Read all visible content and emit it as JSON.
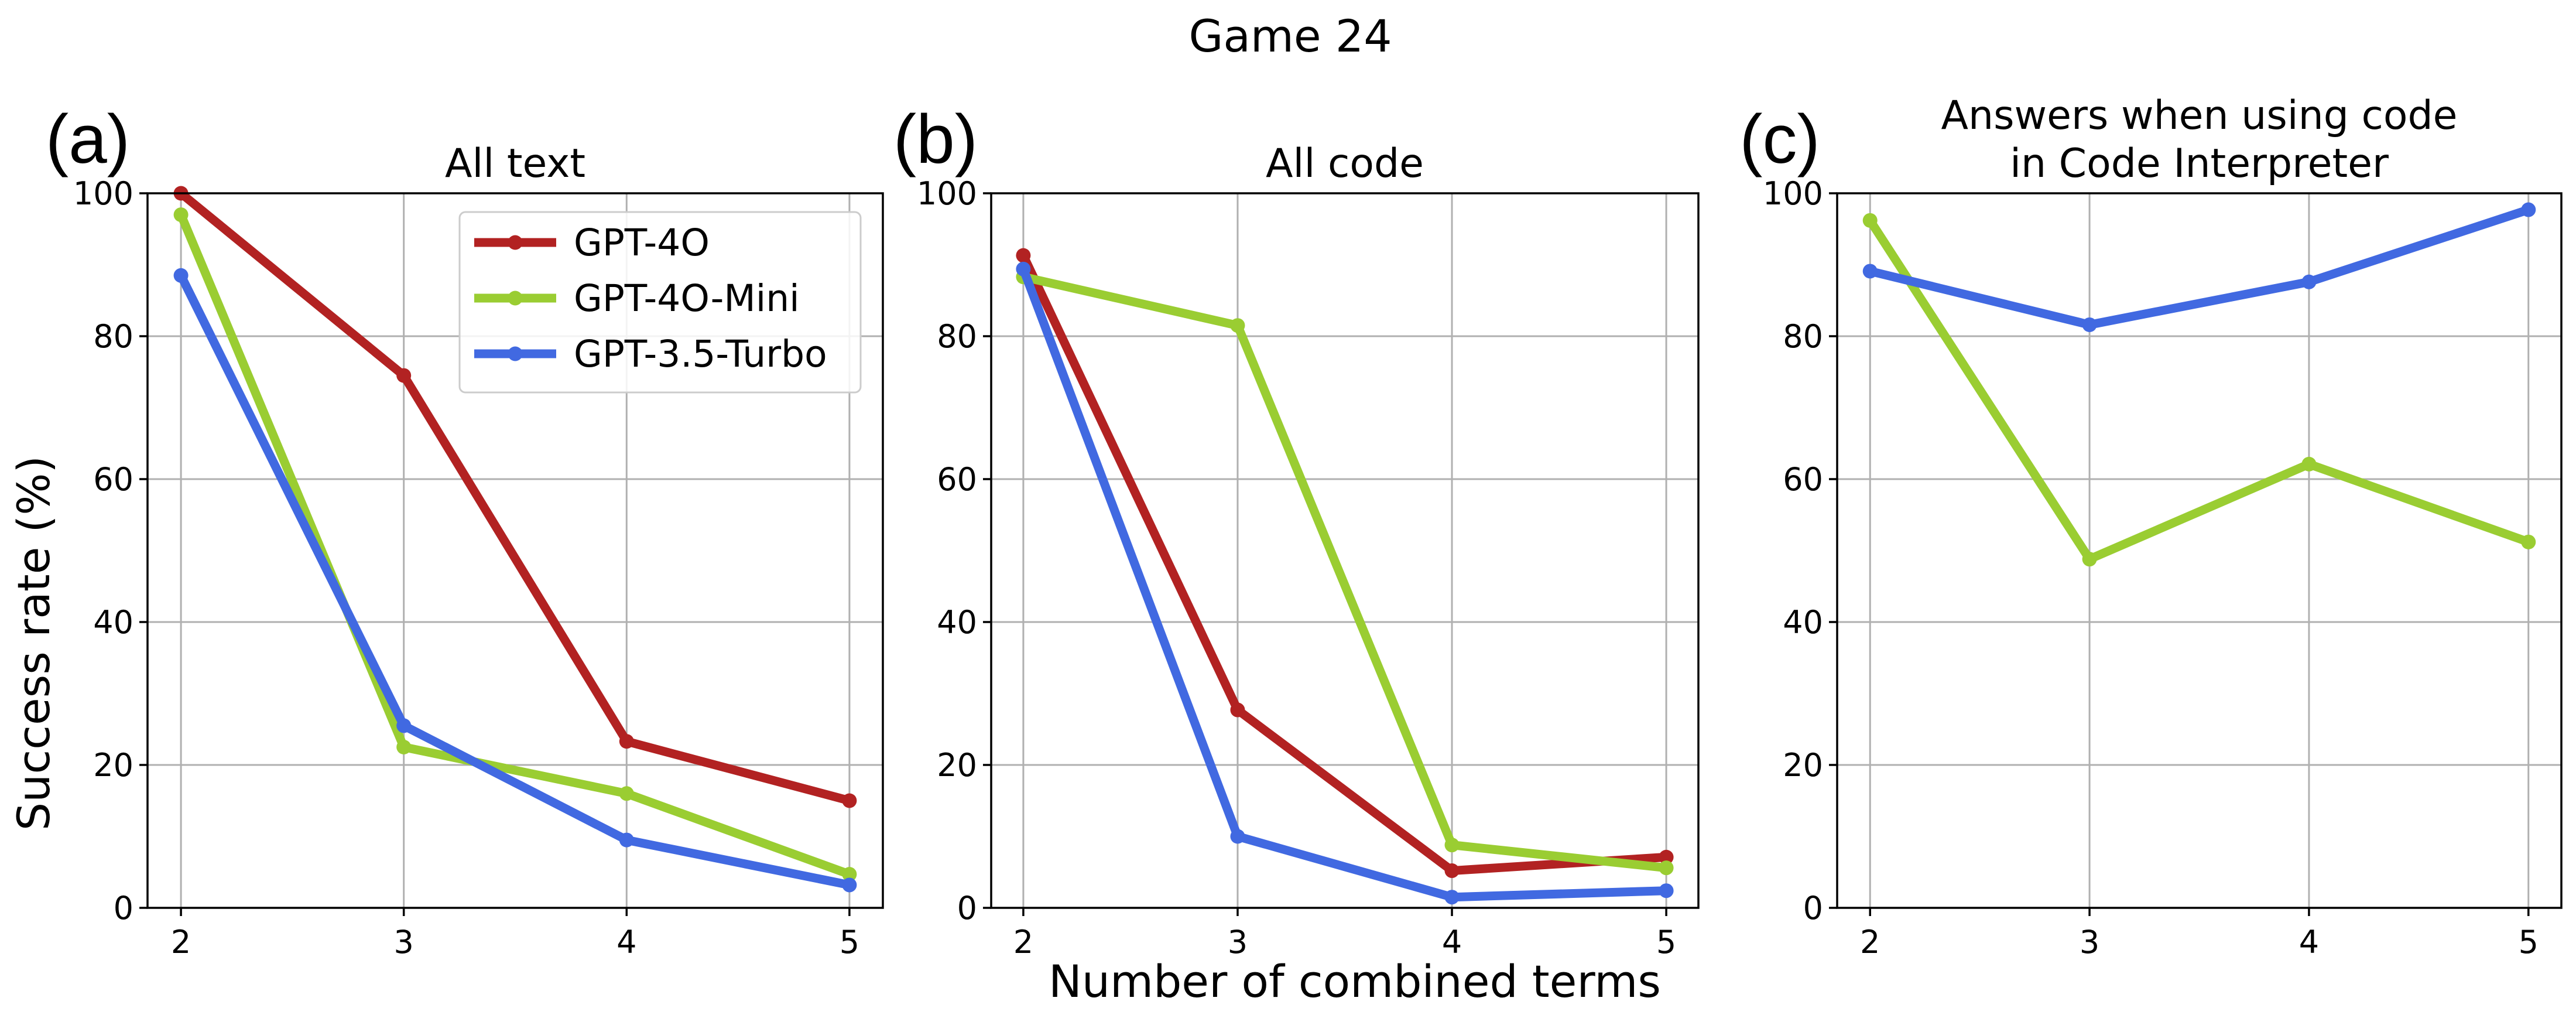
{
  "figure": {
    "title": "Game 24",
    "xlabel": "Number of combined terms",
    "ylabel": "Success rate (%)"
  },
  "chart_data": [
    {
      "type": "line",
      "panel_label": "(a)",
      "title": "All text",
      "x": [
        2,
        3,
        4,
        5
      ],
      "xlim": [
        1.85,
        5.15
      ],
      "ylim": [
        0,
        100
      ],
      "xticks": [
        "2",
        "3",
        "4",
        "5"
      ],
      "yticks": [
        "0",
        "20",
        "40",
        "60",
        "80",
        "100"
      ],
      "grid": true,
      "legend": "upper right",
      "series": [
        {
          "name": "GPT-4O",
          "color": "#b22222",
          "values": [
            100,
            74.5,
            23.3,
            15
          ]
        },
        {
          "name": "GPT-4O-Mini",
          "color": "#9acd32",
          "values": [
            97,
            22.5,
            16,
            4.7
          ]
        },
        {
          "name": "GPT-3.5-Turbo",
          "color": "#4169e1",
          "values": [
            88.5,
            25.5,
            9.5,
            3.2
          ]
        }
      ]
    },
    {
      "type": "line",
      "panel_label": "(b)",
      "title": "All code",
      "x": [
        2,
        3,
        4,
        5
      ],
      "xlim": [
        1.85,
        5.15
      ],
      "ylim": [
        0,
        100
      ],
      "xticks": [
        "2",
        "3",
        "4",
        "5"
      ],
      "yticks": [
        "0",
        "20",
        "40",
        "60",
        "80",
        "100"
      ],
      "grid": true,
      "series": [
        {
          "color": "#b22222",
          "values": [
            91.3,
            27.7,
            5.2,
            7.1
          ]
        },
        {
          "color": "#9acd32",
          "values": [
            88.3,
            81.5,
            8.8,
            5.6
          ]
        },
        {
          "color": "#4169e1",
          "values": [
            89.4,
            10,
            1.5,
            2.4
          ]
        }
      ]
    },
    {
      "type": "line",
      "panel_label": "(c)",
      "title": [
        "Answers when using code",
        "in Code Interpreter"
      ],
      "x": [
        2,
        3,
        4,
        5
      ],
      "xlim": [
        1.85,
        5.15
      ],
      "ylim": [
        0,
        100
      ],
      "xticks": [
        "2",
        "3",
        "4",
        "5"
      ],
      "yticks": [
        "0",
        "20",
        "40",
        "60",
        "80",
        "100"
      ],
      "grid": true,
      "series": [
        {
          "color": "#9acd32",
          "values": [
            96.2,
            48.8,
            62.1,
            51.2
          ]
        },
        {
          "color": "#4169e1",
          "values": [
            89.1,
            81.6,
            87.6,
            97.7
          ]
        }
      ]
    }
  ]
}
